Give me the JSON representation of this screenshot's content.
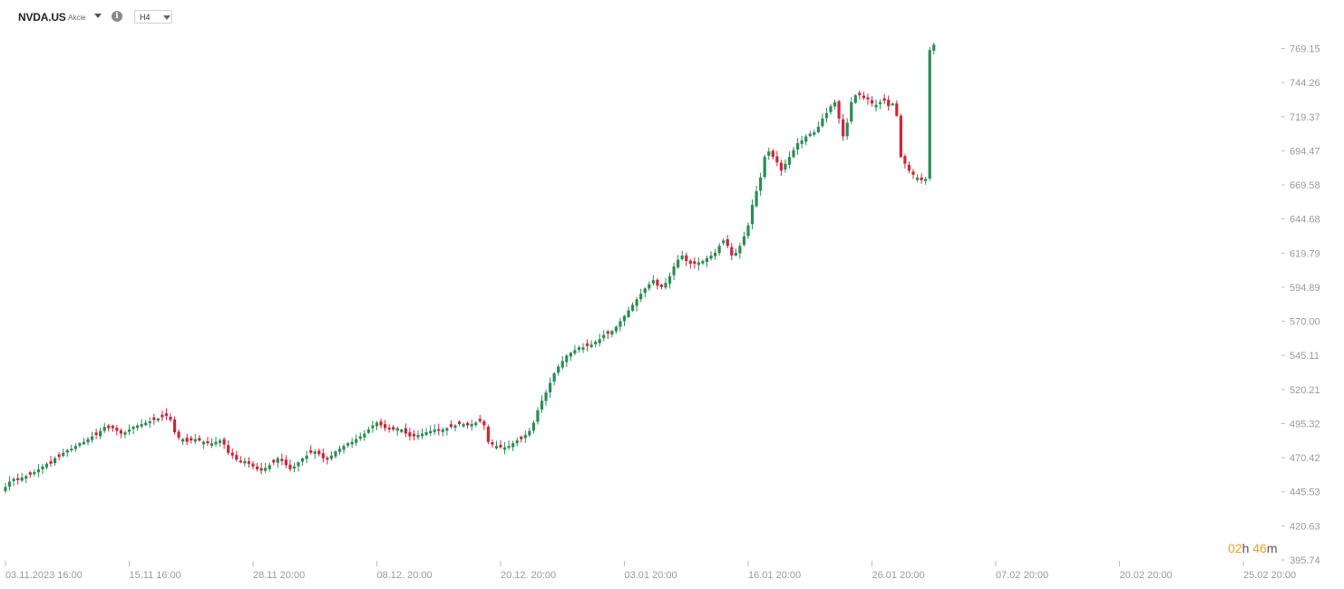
{
  "toolbar": {
    "symbol": "NVDA.US",
    "asset_type": "Akcie",
    "timeframe": "H4",
    "icons": {
      "symbol_dropdown": "chevron-down-icon",
      "info": "info-icon",
      "timeframe_dropdown": "chevron-down-icon"
    }
  },
  "countdown": {
    "hours": "02",
    "hours_unit": "h",
    "minutes": "46",
    "minutes_unit": "m"
  },
  "colors": {
    "up": "#2e8b57",
    "down": "#c8283c",
    "axis_text": "#9a9a9a",
    "countdown_accent": "#f0a020"
  },
  "chart_data": {
    "type": "candlestick",
    "y_axis": {
      "position": "right",
      "range": [
        395.74,
        790
      ],
      "ticks": [
        769.15,
        744.26,
        719.37,
        694.47,
        669.58,
        644.68,
        619.79,
        594.89,
        570.0,
        545.11,
        520.21,
        495.32,
        470.42,
        445.53,
        420.63,
        395.74
      ],
      "tick_labels": [
        "769.15",
        "744.26",
        "719.37",
        "694.47",
        "669.58",
        "644.68",
        "619.79",
        "594.89",
        "570.00",
        "545.11",
        "520.21",
        "495.32",
        "470.42",
        "445.53",
        "420.63",
        "395.74"
      ]
    },
    "x_axis": {
      "labels": [
        {
          "date": "03.11.2023",
          "time": "16:00",
          "candle": 0
        },
        {
          "date": "15.11",
          "time": "16:00",
          "candle": 30
        },
        {
          "date": "28.11",
          "time": "20:00",
          "candle": 60
        },
        {
          "date": "08.12.",
          "time": "20:00",
          "candle": 90
        },
        {
          "date": "20.12.",
          "time": "20:00",
          "candle": 120
        },
        {
          "date": "03.01",
          "time": "20:00",
          "candle": 150
        },
        {
          "date": "16.01",
          "time": "20:00",
          "candle": 180
        },
        {
          "date": "26.01",
          "time": "20:00",
          "candle": 210
        },
        {
          "date": "07.02",
          "time": "20:00",
          "candle": 240
        },
        {
          "date": "20.02",
          "time": "20:00",
          "candle": 270
        },
        {
          "date": "25.02",
          "time": "20:00",
          "candle": 300
        }
      ]
    },
    "closes": [
      449,
      453,
      455,
      454,
      456,
      457,
      458,
      460,
      462,
      464,
      466,
      466,
      470,
      471,
      474,
      476,
      477,
      479,
      481,
      482,
      484,
      486,
      487,
      490,
      493,
      492,
      492,
      490,
      488,
      489,
      491,
      493,
      494,
      495,
      496,
      497,
      498,
      499,
      500,
      501,
      498,
      489,
      485,
      484,
      482,
      483,
      484,
      483,
      482,
      481,
      481,
      482,
      483,
      480,
      474,
      472,
      469,
      467,
      468,
      466,
      464,
      462,
      461,
      463,
      465,
      467,
      470,
      468,
      465,
      462,
      464,
      467,
      470,
      472,
      474,
      475,
      473,
      470,
      469,
      472,
      475,
      477,
      479,
      481,
      482,
      484,
      486,
      488,
      491,
      494,
      496,
      494,
      492,
      491,
      491,
      492,
      491,
      488,
      486,
      486,
      487,
      488,
      489,
      490,
      491,
      490,
      491,
      492,
      493,
      494,
      495,
      495,
      494,
      495,
      496,
      497,
      494,
      482,
      480,
      479,
      478,
      478,
      479,
      481,
      483,
      484,
      487,
      490,
      496,
      505,
      512,
      518,
      525,
      532,
      537,
      541,
      545,
      547,
      549,
      551,
      551,
      552,
      553,
      555,
      557,
      560,
      561,
      563,
      566,
      570,
      574,
      578,
      582,
      586,
      590,
      594,
      597,
      600,
      596,
      595,
      598,
      603,
      610,
      615,
      618,
      614,
      612,
      612,
      613,
      614,
      616,
      618,
      620,
      625,
      629,
      625,
      618,
      620,
      625,
      632,
      640,
      655,
      665,
      675,
      690,
      694,
      690,
      686,
      680,
      685,
      690,
      695,
      700,
      702,
      705,
      707,
      708,
      712,
      718,
      722,
      727,
      730,
      718,
      705,
      715,
      730,
      735,
      735,
      733,
      732,
      729,
      728,
      730,
      731,
      727,
      729,
      720,
      690,
      685,
      680,
      677,
      675,
      673,
      674,
      768,
      772
    ],
    "breaks_after": [
      173,
      227
    ]
  }
}
